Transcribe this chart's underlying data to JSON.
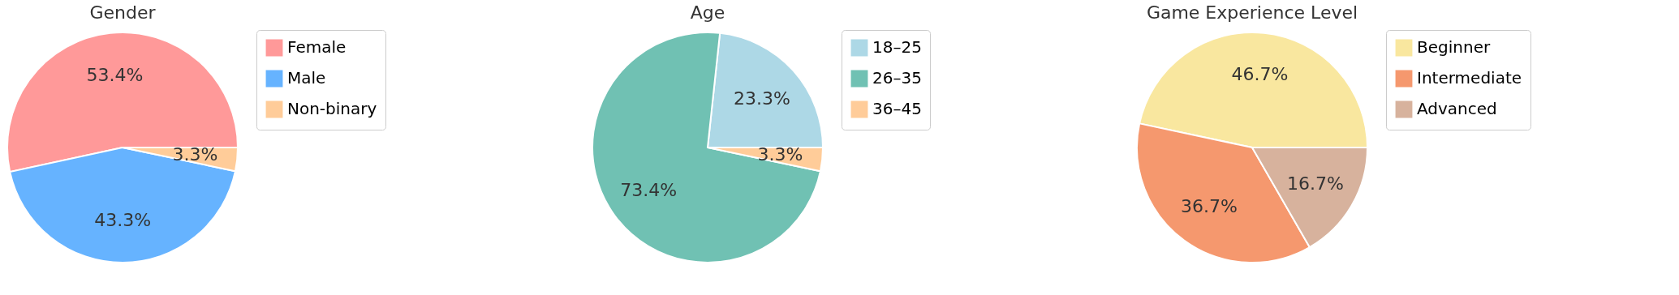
{
  "chart_data": [
    {
      "type": "pie",
      "title": "Gender",
      "categories": [
        "Female",
        "Male",
        "Non-binary"
      ],
      "values": [
        53.4,
        43.3,
        3.3
      ],
      "colors": [
        "#ff9999",
        "#66b3ff",
        "#ffcc99"
      ],
      "value_labels": [
        "53.4%",
        "43.3%",
        "3.3%"
      ],
      "legend": "right"
    },
    {
      "type": "pie",
      "title": "Age",
      "categories": [
        "18–25",
        "26–35",
        "36–45"
      ],
      "values": [
        23.3,
        73.4,
        3.3
      ],
      "colors": [
        "#add8e6",
        "#70c1b3",
        "#ffcc99"
      ],
      "value_labels": [
        "23.3%",
        "73.4%",
        "3.3%"
      ],
      "legend": "right"
    },
    {
      "type": "pie",
      "title": "Game Experience Level",
      "categories": [
        "Beginner",
        "Intermediate",
        "Advanced"
      ],
      "values": [
        46.7,
        36.7,
        16.7
      ],
      "colors": [
        "#f9e79f",
        "#f5986e",
        "#d7b29d"
      ],
      "value_labels": [
        "46.7%",
        "36.7%",
        "16.7%"
      ],
      "legend": "right"
    }
  ]
}
